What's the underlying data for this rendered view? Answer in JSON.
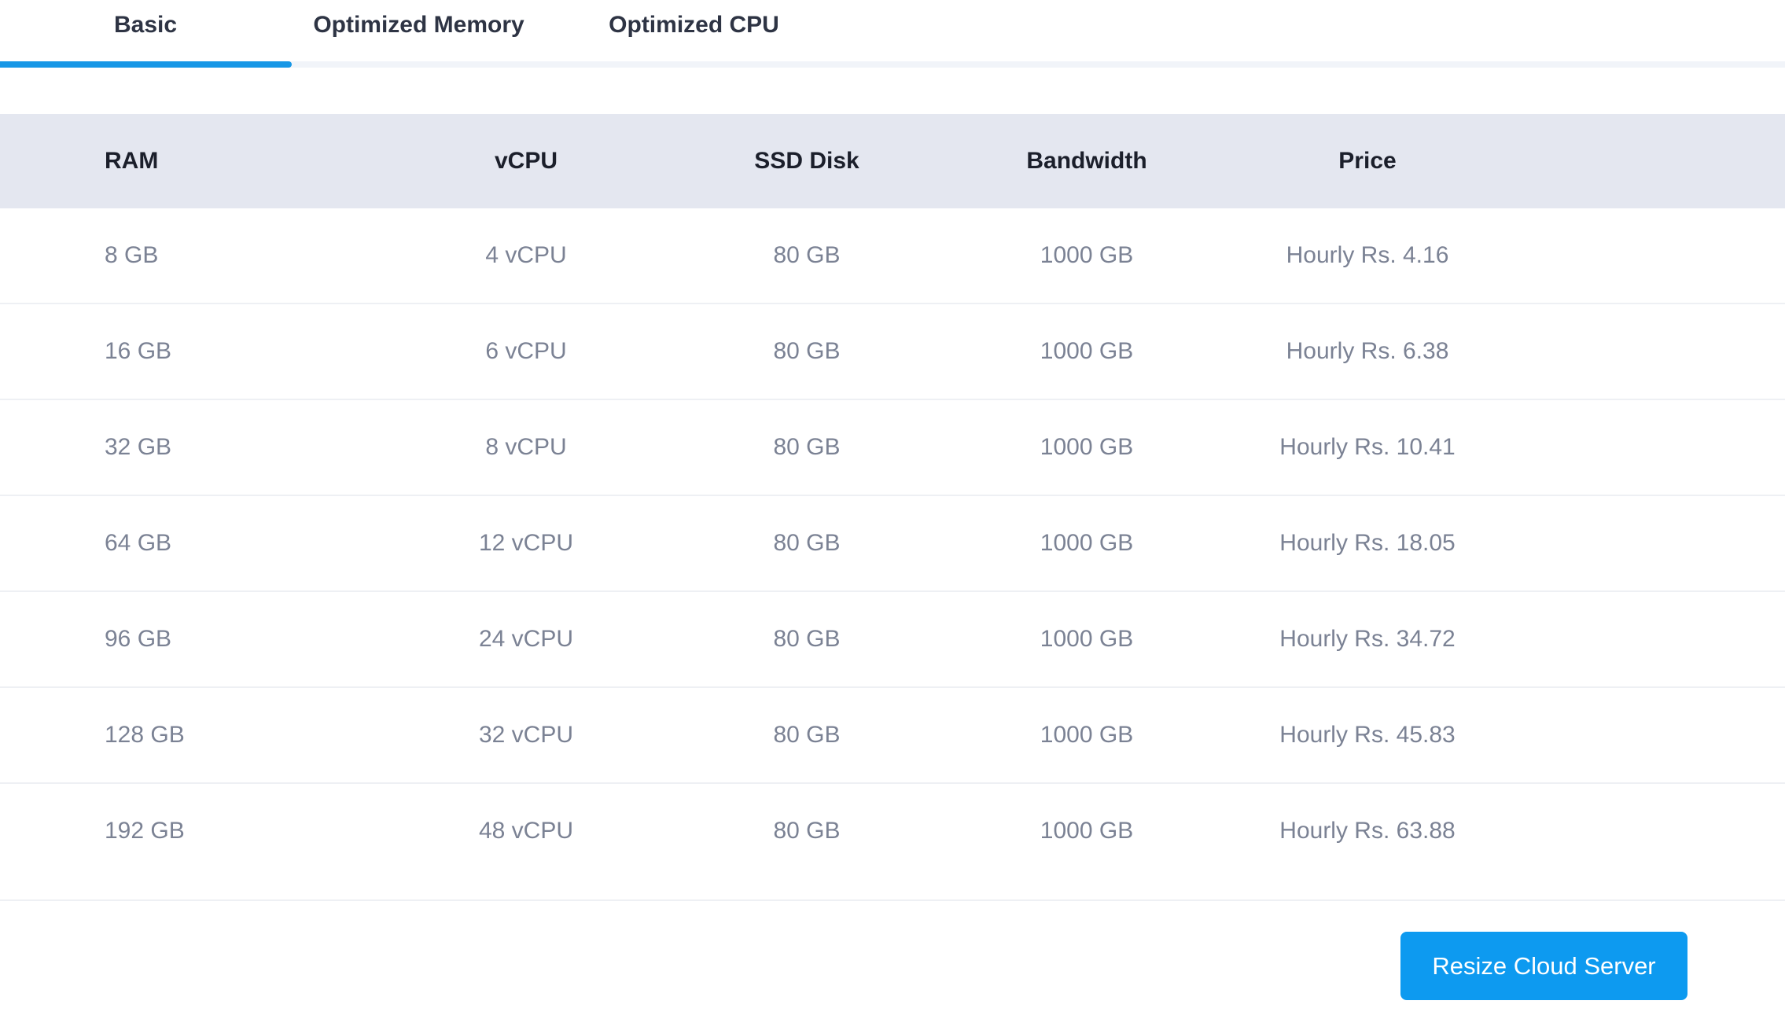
{
  "tabs": [
    {
      "label": "Basic",
      "active": true
    },
    {
      "label": "Optimized Memory",
      "active": false
    },
    {
      "label": "Optimized CPU",
      "active": false
    }
  ],
  "table": {
    "headers": [
      "RAM",
      "vCPU",
      "SSD Disk",
      "Bandwidth",
      "Price"
    ],
    "rows": [
      [
        "8 GB",
        "4 vCPU",
        "80 GB",
        "1000 GB",
        "Hourly Rs. 4.16"
      ],
      [
        "16 GB",
        "6 vCPU",
        "80 GB",
        "1000 GB",
        "Hourly Rs. 6.38"
      ],
      [
        "32 GB",
        "8 vCPU",
        "80 GB",
        "1000 GB",
        "Hourly Rs. 10.41"
      ],
      [
        "64 GB",
        "12 vCPU",
        "80 GB",
        "1000 GB",
        "Hourly Rs. 18.05"
      ],
      [
        "96 GB",
        "24 vCPU",
        "80 GB",
        "1000 GB",
        "Hourly Rs. 34.72"
      ],
      [
        "128 GB",
        "32 vCPU",
        "80 GB",
        "1000 GB",
        "Hourly Rs. 45.83"
      ],
      [
        "192 GB",
        "48 vCPU",
        "80 GB",
        "1000 GB",
        "Hourly Rs. 63.88"
      ]
    ]
  },
  "actions": {
    "resize_label": "Resize Cloud Server"
  },
  "colors": {
    "accent": "#1797e6",
    "button": "#0d9af0",
    "header_bg": "#e4e7f0",
    "cell_text": "#7b8294",
    "header_text": "#1b1f2b"
  }
}
